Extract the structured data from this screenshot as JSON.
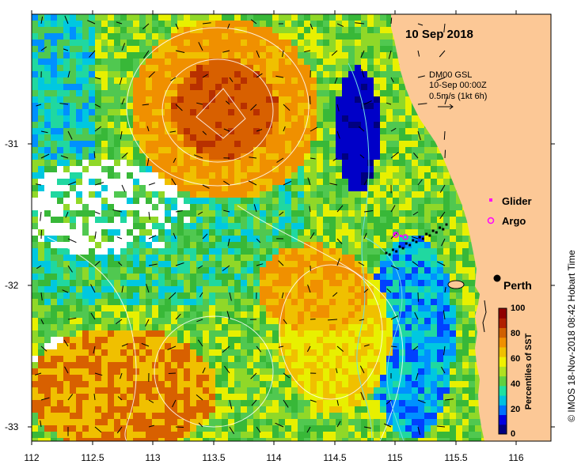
{
  "map": {
    "date_title": "10 Sep 2018",
    "current_info": [
      "DM00 GSL",
      "10-Sep 00:00Z",
      "0.5m/s (1kt 6h)"
    ],
    "x_ticks": [
      "112",
      "112.5",
      "113",
      "113.5",
      "114",
      "114.5",
      "115",
      "115.5",
      "116"
    ],
    "y_ticks": [
      "-31",
      "-32",
      "-33"
    ],
    "legend": {
      "glider": "Glider",
      "argo": "Argo",
      "glider_color": "#ff00ff",
      "argo_color": "#ff00ff"
    },
    "city": "Perth",
    "land_color": "#fcc896",
    "colorbar": {
      "title": "Percentiles of SST",
      "ticks": [
        "100",
        "80",
        "60",
        "40",
        "20",
        "0"
      ],
      "colors": [
        "#000080",
        "#0000e0",
        "#0070ff",
        "#00c0e0",
        "#20e0a0",
        "#60d040",
        "#b0e020",
        "#f0f000",
        "#f0c000",
        "#f09000",
        "#d06000",
        "#b02000",
        "#900000"
      ]
    },
    "credit": "© IMOS 18-Nov-2018 08:42 Hobart Time"
  }
}
